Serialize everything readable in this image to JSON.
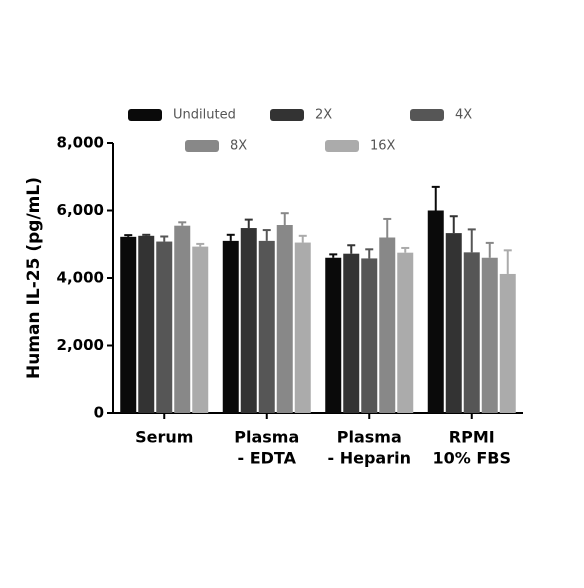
{
  "chart_data": {
    "type": "bar",
    "ylabel": "Human IL-25 (pg/mL)",
    "categories": [
      [
        "Serum"
      ],
      [
        "Plasma",
        "- EDTA"
      ],
      [
        "Plasma",
        "- Heparin"
      ],
      [
        "RPMI",
        "10% FBS"
      ]
    ],
    "series": [
      {
        "name": "Undiluted",
        "color": "#0a0a0a",
        "values": [
          5220,
          5100,
          4600,
          6000
        ],
        "errors": [
          50,
          180,
          100,
          700
        ]
      },
      {
        "name": "2X",
        "color": "#333333",
        "values": [
          5250,
          5480,
          4720,
          5330
        ],
        "errors": [
          30,
          250,
          250,
          500
        ]
      },
      {
        "name": "4X",
        "color": "#565656",
        "values": [
          5080,
          5100,
          4580,
          4760
        ],
        "errors": [
          150,
          320,
          270,
          680
        ]
      },
      {
        "name": "8X",
        "color": "#888888",
        "values": [
          5550,
          5570,
          5200,
          4600
        ],
        "errors": [
          100,
          350,
          550,
          440
        ]
      },
      {
        "name": "16X",
        "color": "#ababab",
        "values": [
          4930,
          5050,
          4750,
          4120
        ],
        "errors": [
          80,
          200,
          140,
          700
        ]
      }
    ],
    "ylim": [
      0,
      8000
    ],
    "yticks": [
      0,
      {
        "value": 2000,
        "label": "2,000"
      },
      {
        "value": 4000,
        "label": "4,000"
      },
      {
        "value": 6000,
        "label": "6,000"
      },
      {
        "value": 8000,
        "label": "8,000"
      }
    ],
    "grid": false
  }
}
